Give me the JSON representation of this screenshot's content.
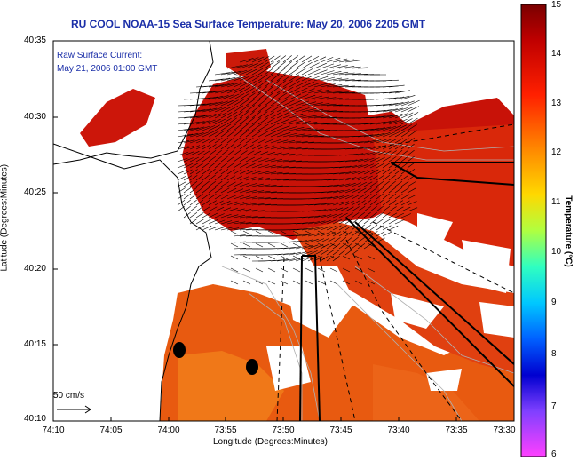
{
  "title": "RU COOL  NOAA-15  Sea Surface Temperature:  May 20, 2006 2205 GMT",
  "annotation": {
    "line1": "Raw Surface Current:",
    "line2": "May 21, 2006 01:00 GMT"
  },
  "x_axis": {
    "label": "Longitude (Degrees:Minutes)",
    "ticks": [
      "74:10",
      "74:05",
      "74:00",
      "73:55",
      "73:50",
      "73:45",
      "73:40",
      "73:35",
      "73:30"
    ]
  },
  "y_axis": {
    "label": "Latitude (Degrees:Minutes)",
    "ticks": [
      "40:35",
      "40:30",
      "40:25",
      "40:20",
      "40:15",
      "40:10"
    ]
  },
  "scale_label": "50 cm/s",
  "colorbar": {
    "label": "Temperature (°C)",
    "ticks": [
      "15",
      "14",
      "13",
      "12",
      "11",
      "10",
      "9",
      "8",
      "7",
      "6"
    ],
    "range": [
      6,
      15
    ]
  },
  "colors": {
    "title": "#1a2ea8",
    "land": "#ffffff",
    "sst_warm": "#c80000",
    "sst_mid": "#e84a0a",
    "sst_cool": "#f07818"
  }
}
